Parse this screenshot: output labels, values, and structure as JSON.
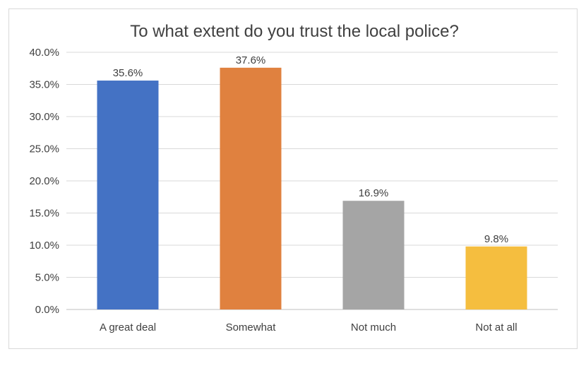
{
  "chart_data": {
    "type": "bar",
    "title": "To what extent do you trust the local police?",
    "categories": [
      "A great deal",
      "Somewhat",
      "Not much",
      "Not at all"
    ],
    "values": [
      35.6,
      37.6,
      16.9,
      9.8
    ],
    "data_labels": [
      "35.6%",
      "37.6%",
      "16.9%",
      "9.8%"
    ],
    "colors": [
      "#4472c4",
      "#e0813f",
      "#a5a5a5",
      "#f5be3f"
    ],
    "ylim": [
      0,
      40
    ],
    "y_ticks": [
      0,
      5,
      10,
      15,
      20,
      25,
      30,
      35,
      40
    ],
    "y_tick_labels": [
      "0.0%",
      "5.0%",
      "10.0%",
      "15.0%",
      "20.0%",
      "25.0%",
      "30.0%",
      "35.0%",
      "40.0%"
    ],
    "xlabel": "",
    "ylabel": "",
    "grid": true,
    "legend": "none"
  }
}
